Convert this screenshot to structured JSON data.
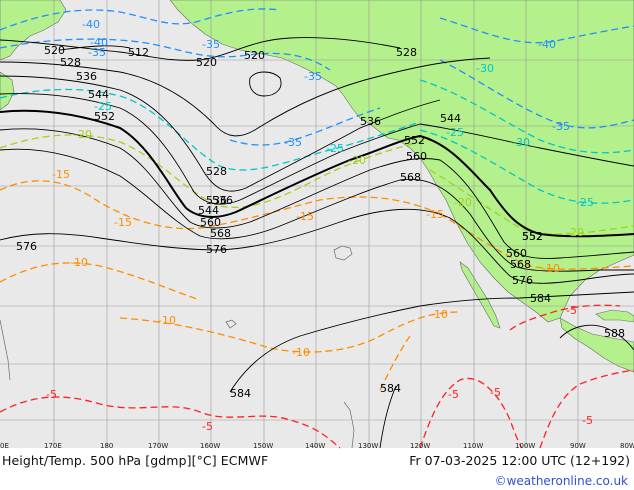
{
  "caption": {
    "left": "Height/Temp. 500 hPa [gdmp][°C] ECMWF",
    "right": "Fr 07-03-2025 12:00 UTC (12+192)",
    "credit": "©weatheronline.co.uk"
  },
  "colors": {
    "ocean": "#e9e9e9",
    "land": "#b4f08c",
    "grid": "#9a9a9a",
    "height_contour": "#000000",
    "temp_minus40_35": "#1e90ff",
    "temp_minus30_25": "#00c8c8",
    "temp_minus20_15": "#a0d21e",
    "temp_minus10": "#ff8c00",
    "temp_minus5": "#ff2020"
  },
  "longitude_ticks": [
    "170E",
    "180",
    "170W",
    "160W",
    "150W",
    "140W",
    "130W",
    "120W",
    "110W",
    "100W",
    "90W",
    "80W"
  ],
  "height_labels": [
    "520",
    "512",
    "520",
    "528",
    "528",
    "536",
    "544",
    "552",
    "520",
    "528",
    "536",
    "536",
    "544",
    "552",
    "560",
    "568",
    "544",
    "536",
    "552",
    "560",
    "568",
    "576",
    "576",
    "552",
    "560",
    "568",
    "576",
    "584",
    "588",
    "584",
    "584"
  ],
  "temp_labels": [
    {
      "text": "-40",
      "color": "#1e90ff"
    },
    {
      "text": "-40",
      "color": "#1e90ff"
    },
    {
      "text": "-35",
      "color": "#1e90ff"
    },
    {
      "text": "-35",
      "color": "#1e90ff"
    },
    {
      "text": "-35",
      "color": "#1e90ff"
    },
    {
      "text": "-35",
      "color": "#1e90ff"
    },
    {
      "text": "-40",
      "color": "#1e90ff"
    },
    {
      "text": "-35",
      "color": "#1e90ff"
    },
    {
      "text": "-30",
      "color": "#00c8c8"
    },
    {
      "text": "-30",
      "color": "#00c8c8"
    },
    {
      "text": "-25",
      "color": "#00c8c8"
    },
    {
      "text": "-25",
      "color": "#00c8c8"
    },
    {
      "text": "-25",
      "color": "#00c8c8"
    },
    {
      "text": "-25",
      "color": "#00c8c8"
    },
    {
      "text": "-20",
      "color": "#a0d21e"
    },
    {
      "text": "-20",
      "color": "#a0d21e"
    },
    {
      "text": "-20",
      "color": "#a0d21e"
    },
    {
      "text": "-20",
      "color": "#a0d21e"
    },
    {
      "text": "-15",
      "color": "#ff8c00"
    },
    {
      "text": "-15",
      "color": "#ff8c00"
    },
    {
      "text": "-15",
      "color": "#ff8c00"
    },
    {
      "text": "-15",
      "color": "#ff8c00"
    },
    {
      "text": "-10",
      "color": "#ff8c00"
    },
    {
      "text": "-10",
      "color": "#ff8c00"
    },
    {
      "text": "-10",
      "color": "#ff8c00"
    },
    {
      "text": "-10",
      "color": "#ff8c00"
    },
    {
      "text": "-10",
      "color": "#ff8c00"
    },
    {
      "text": "-5",
      "color": "#ff2020"
    },
    {
      "text": "-5",
      "color": "#ff2020"
    },
    {
      "text": "-5",
      "color": "#ff2020"
    },
    {
      "text": "-5",
      "color": "#ff2020"
    },
    {
      "text": "-5",
      "color": "#ff2020"
    },
    {
      "text": "-5",
      "color": "#ff2020"
    }
  ]
}
